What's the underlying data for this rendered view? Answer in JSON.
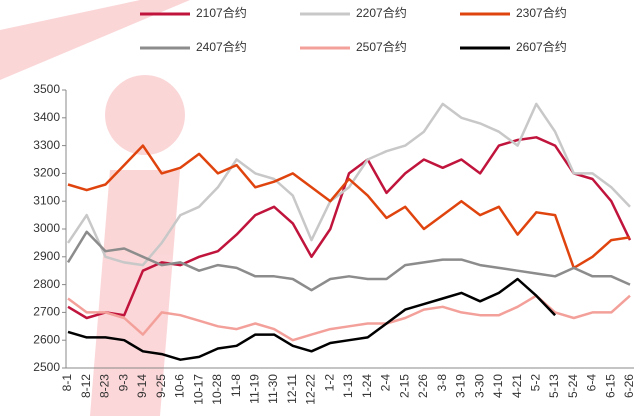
{
  "chart_data": {
    "type": "line",
    "categories": [
      "8-1",
      "8-12",
      "8-23",
      "9-3",
      "9-14",
      "9-25",
      "10-6",
      "10-17",
      "10-28",
      "11-8",
      "11-19",
      "11-30",
      "12-11",
      "12-22",
      "1-2",
      "1-13",
      "1-24",
      "2-4",
      "2-15",
      "2-26",
      "3-8",
      "3-19",
      "3-30",
      "4-10",
      "4-21",
      "5-2",
      "5-13",
      "5-24",
      "6-4",
      "6-15",
      "6-26"
    ],
    "series": [
      {
        "name": "2107合约",
        "color": "#c0143c",
        "values": [
          2720,
          2680,
          2700,
          2690,
          2850,
          2880,
          2870,
          2900,
          2920,
          2980,
          3050,
          3080,
          3020,
          2900,
          3000,
          3200,
          3250,
          3130,
          3200,
          3250,
          3220,
          3250,
          3200,
          3300,
          3320,
          3330,
          3300,
          3200,
          3180,
          3100,
          2960
        ]
      },
      {
        "name": "2207合约",
        "color": "#c8c8c8",
        "values": [
          2950,
          3050,
          2900,
          2880,
          2870,
          2950,
          3050,
          3080,
          3150,
          3250,
          3200,
          3180,
          3120,
          2960,
          3100,
          3150,
          3250,
          3280,
          3300,
          3350,
          3450,
          3400,
          3380,
          3350,
          3300,
          3450,
          3350,
          3200,
          3200,
          3150,
          3080
        ]
      },
      {
        "name": "2307合约",
        "color": "#e0440e",
        "values": [
          3160,
          3140,
          3160,
          3230,
          3300,
          3200,
          3220,
          3270,
          3200,
          3230,
          3150,
          3170,
          3200,
          3150,
          3100,
          3180,
          3120,
          3040,
          3080,
          3000,
          3050,
          3100,
          3050,
          3080,
          2980,
          3060,
          3050,
          2860,
          2900,
          2960,
          2970
        ]
      },
      {
        "name": "2407合约",
        "color": "#8c8c8c",
        "values": [
          2880,
          2990,
          2920,
          2930,
          2900,
          2870,
          2880,
          2850,
          2870,
          2860,
          2830,
          2830,
          2820,
          2780,
          2820,
          2830,
          2820,
          2820,
          2870,
          2880,
          2890,
          2890,
          2870,
          2860,
          2850,
          2840,
          2830,
          2860,
          2830,
          2830,
          2800
        ]
      },
      {
        "name": "2507合约",
        "color": "#f4a09a",
        "values": [
          2750,
          2700,
          2700,
          2680,
          2620,
          2700,
          2690,
          2670,
          2650,
          2640,
          2660,
          2640,
          2600,
          2620,
          2640,
          2650,
          2660,
          2660,
          2680,
          2710,
          2720,
          2700,
          2690,
          2690,
          2720,
          2760,
          2700,
          2680,
          2700,
          2700,
          2760
        ]
      },
      {
        "name": "2607合约",
        "color": "#000000",
        "values": [
          2630,
          2610,
          2610,
          2600,
          2560,
          2550,
          2530,
          2540,
          2570,
          2580,
          2620,
          2620,
          2580,
          2560,
          2590,
          2600,
          2610,
          2660,
          2710,
          2730,
          2750,
          2770,
          2740,
          2770,
          2820,
          2760,
          2690,
          null,
          null,
          null,
          null
        ]
      }
    ],
    "ylim": [
      2500,
      3500
    ],
    "yticks": [
      2500,
      2600,
      2700,
      2800,
      2900,
      3000,
      3100,
      3200,
      3300,
      3400,
      3500
    ]
  }
}
